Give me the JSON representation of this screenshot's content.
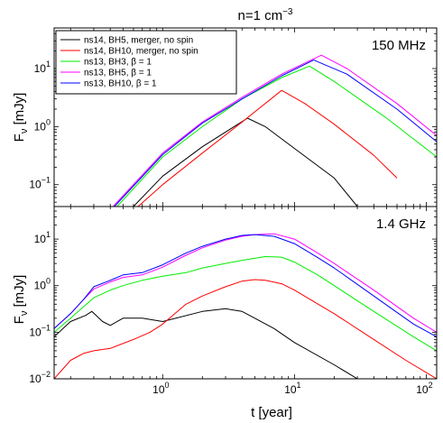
{
  "figure": {
    "title_base": "n=1 cm",
    "title_exp": "−3",
    "xlabel": "t [year]",
    "ylabel_main": "F",
    "ylabel_sub": "ν",
    "ylabel_unit": " [mJy]"
  },
  "legend": {
    "placement": "top-left of upper panel",
    "entries": [
      {
        "label": "ns14, BH5, merger, no spin",
        "color": "#000000"
      },
      {
        "label": "ns14, BH10, merger, no spin",
        "color": "#ff0000"
      },
      {
        "label": "ns13, BH3, β = 1",
        "color": "#00ee00"
      },
      {
        "label": "ns13, BH5, β = 1",
        "color": "#ff00ff"
      },
      {
        "label": "ns13, BH10, β = 1",
        "color": "#0000ff"
      }
    ]
  },
  "chart_data": [
    {
      "type": "line",
      "panel_label": "150 MHz",
      "xscale": "log",
      "yscale": "log",
      "xlim": [
        0.15,
        120
      ],
      "ylim": [
        0.042,
        50
      ],
      "xticks": [
        {
          "v": 1,
          "label": "10",
          "exp": "0"
        },
        {
          "v": 10,
          "label": "10",
          "exp": "1"
        },
        {
          "v": 100,
          "label": "10",
          "exp": "2"
        }
      ],
      "yticks": [
        {
          "v": 0.1,
          "label": "10",
          "exp": "−1"
        },
        {
          "v": 1,
          "label": "10",
          "exp": "0"
        },
        {
          "v": 10,
          "label": "10",
          "exp": "1"
        }
      ],
      "x_ticklabels_shown": false,
      "series": [
        {
          "name": "ns14, BH5, merger, no spin",
          "color": "#000000",
          "x": [
            0.6,
            1.0,
            2.0,
            4.4,
            6.0,
            10.0,
            20.0,
            30.0
          ],
          "y": [
            0.042,
            0.14,
            0.45,
            1.4,
            1.0,
            0.42,
            0.13,
            0.042
          ]
        },
        {
          "name": "ns14, BH10, merger, no spin",
          "color": "#ff0000",
          "x": [
            0.65,
            1.0,
            2.0,
            4.0,
            8.0,
            12.0,
            20.0,
            40.0,
            60.0
          ],
          "y": [
            0.042,
            0.1,
            0.35,
            1.2,
            4.2,
            2.5,
            1.1,
            0.32,
            0.13
          ]
        },
        {
          "name": "ns13, BH3, β = 1",
          "color": "#00ee00",
          "x": [
            0.45,
            1.0,
            2.0,
            4.0,
            8.0,
            13.0,
            20.0,
            50.0,
            120.0
          ],
          "y": [
            0.042,
            0.3,
            1.0,
            3.0,
            7.0,
            11.0,
            6.0,
            1.4,
            0.3
          ]
        },
        {
          "name": "ns13, BH5, β = 1",
          "color": "#ff00ff",
          "x": [
            0.42,
            1.0,
            2.0,
            4.0,
            8.0,
            16.0,
            25.0,
            60.0,
            120.0
          ],
          "y": [
            0.042,
            0.35,
            1.2,
            3.2,
            8.0,
            17.0,
            10.0,
            2.5,
            0.7
          ]
        },
        {
          "name": "ns13, BH10, β = 1",
          "color": "#0000ff",
          "x": [
            0.43,
            1.0,
            2.0,
            4.0,
            8.0,
            14.0,
            25.0,
            60.0,
            120.0
          ],
          "y": [
            0.042,
            0.33,
            1.15,
            3.0,
            7.5,
            14.0,
            8.0,
            2.0,
            0.55
          ]
        }
      ]
    },
    {
      "type": "line",
      "panel_label": "1.4 GHz",
      "xscale": "log",
      "yscale": "log",
      "xlim": [
        0.15,
        120
      ],
      "ylim": [
        0.01,
        50
      ],
      "xticks": [
        {
          "v": 1,
          "label": "10",
          "exp": "0"
        },
        {
          "v": 10,
          "label": "10",
          "exp": "1"
        },
        {
          "v": 100,
          "label": "10",
          "exp": "2"
        }
      ],
      "yticks": [
        {
          "v": 0.01,
          "label": "10",
          "exp": "−2"
        },
        {
          "v": 0.1,
          "label": "10",
          "exp": "−1"
        },
        {
          "v": 1,
          "label": "10",
          "exp": "0"
        },
        {
          "v": 10,
          "label": "10",
          "exp": "1"
        }
      ],
      "x_ticklabels_shown": true,
      "series": [
        {
          "name": "ns14, BH5, merger, no spin",
          "color": "#000000",
          "x": [
            0.15,
            0.2,
            0.26,
            0.29,
            0.35,
            0.4,
            0.5,
            0.7,
            1.0,
            2.0,
            3.0,
            4.0,
            5.0,
            7.0,
            10.0,
            20.0,
            30.0
          ],
          "y": [
            0.08,
            0.17,
            0.23,
            0.28,
            0.17,
            0.14,
            0.2,
            0.2,
            0.17,
            0.28,
            0.32,
            0.28,
            0.2,
            0.12,
            0.06,
            0.02,
            0.01
          ]
        },
        {
          "name": "ns14, BH10, merger, no spin",
          "color": "#ff0000",
          "x": [
            0.15,
            0.2,
            0.25,
            0.3,
            0.4,
            0.6,
            0.8,
            1.0,
            1.5,
            2.0,
            3.0,
            4.0,
            5.0,
            6.0,
            8.0,
            10.0,
            20.0,
            40.0,
            70.0,
            120.0
          ],
          "y": [
            0.01,
            0.025,
            0.035,
            0.04,
            0.045,
            0.07,
            0.1,
            0.15,
            0.4,
            0.6,
            0.95,
            1.25,
            1.35,
            1.3,
            1.1,
            0.8,
            0.25,
            0.07,
            0.025,
            0.01
          ]
        },
        {
          "name": "ns13, BH3, β = 1",
          "color": "#00ee00",
          "x": [
            0.15,
            0.2,
            0.25,
            0.3,
            0.4,
            0.5,
            0.7,
            1.0,
            1.5,
            2.0,
            3.0,
            4.0,
            6.0,
            8.0,
            10.0,
            15.0,
            20.0,
            40.0,
            80.0,
            120.0
          ],
          "y": [
            0.1,
            0.2,
            0.35,
            0.55,
            0.8,
            1.0,
            1.3,
            1.6,
            1.9,
            2.4,
            3.0,
            3.5,
            4.2,
            4.1,
            3.2,
            1.7,
            1.0,
            0.28,
            0.08,
            0.04
          ]
        },
        {
          "name": "ns13, BH5, β = 1",
          "color": "#ff00ff",
          "x": [
            0.15,
            0.2,
            0.25,
            0.3,
            0.4,
            0.5,
            0.7,
            1.0,
            1.5,
            2.0,
            3.0,
            4.0,
            5.0,
            7.0,
            10.0,
            15.0,
            20.0,
            40.0,
            80.0,
            120.0
          ],
          "y": [
            0.12,
            0.25,
            0.5,
            0.85,
            1.2,
            1.5,
            1.7,
            2.5,
            4.5,
            6.5,
            9.5,
            11.5,
            12.5,
            13.0,
            10.0,
            5.0,
            3.0,
            0.8,
            0.2,
            0.1
          ]
        },
        {
          "name": "ns13, BH10, β = 1",
          "color": "#0000ff",
          "x": [
            0.15,
            0.2,
            0.25,
            0.3,
            0.4,
            0.5,
            0.7,
            1.0,
            1.5,
            2.0,
            3.0,
            4.0,
            5.0,
            7.0,
            10.0,
            15.0,
            20.0,
            40.0,
            80.0,
            120.0
          ],
          "y": [
            0.12,
            0.25,
            0.5,
            0.95,
            1.3,
            1.7,
            1.9,
            2.8,
            5.0,
            7.0,
            10.0,
            12.0,
            12.5,
            11.5,
            8.0,
            4.0,
            2.4,
            0.6,
            0.15,
            0.08
          ]
        }
      ]
    }
  ]
}
